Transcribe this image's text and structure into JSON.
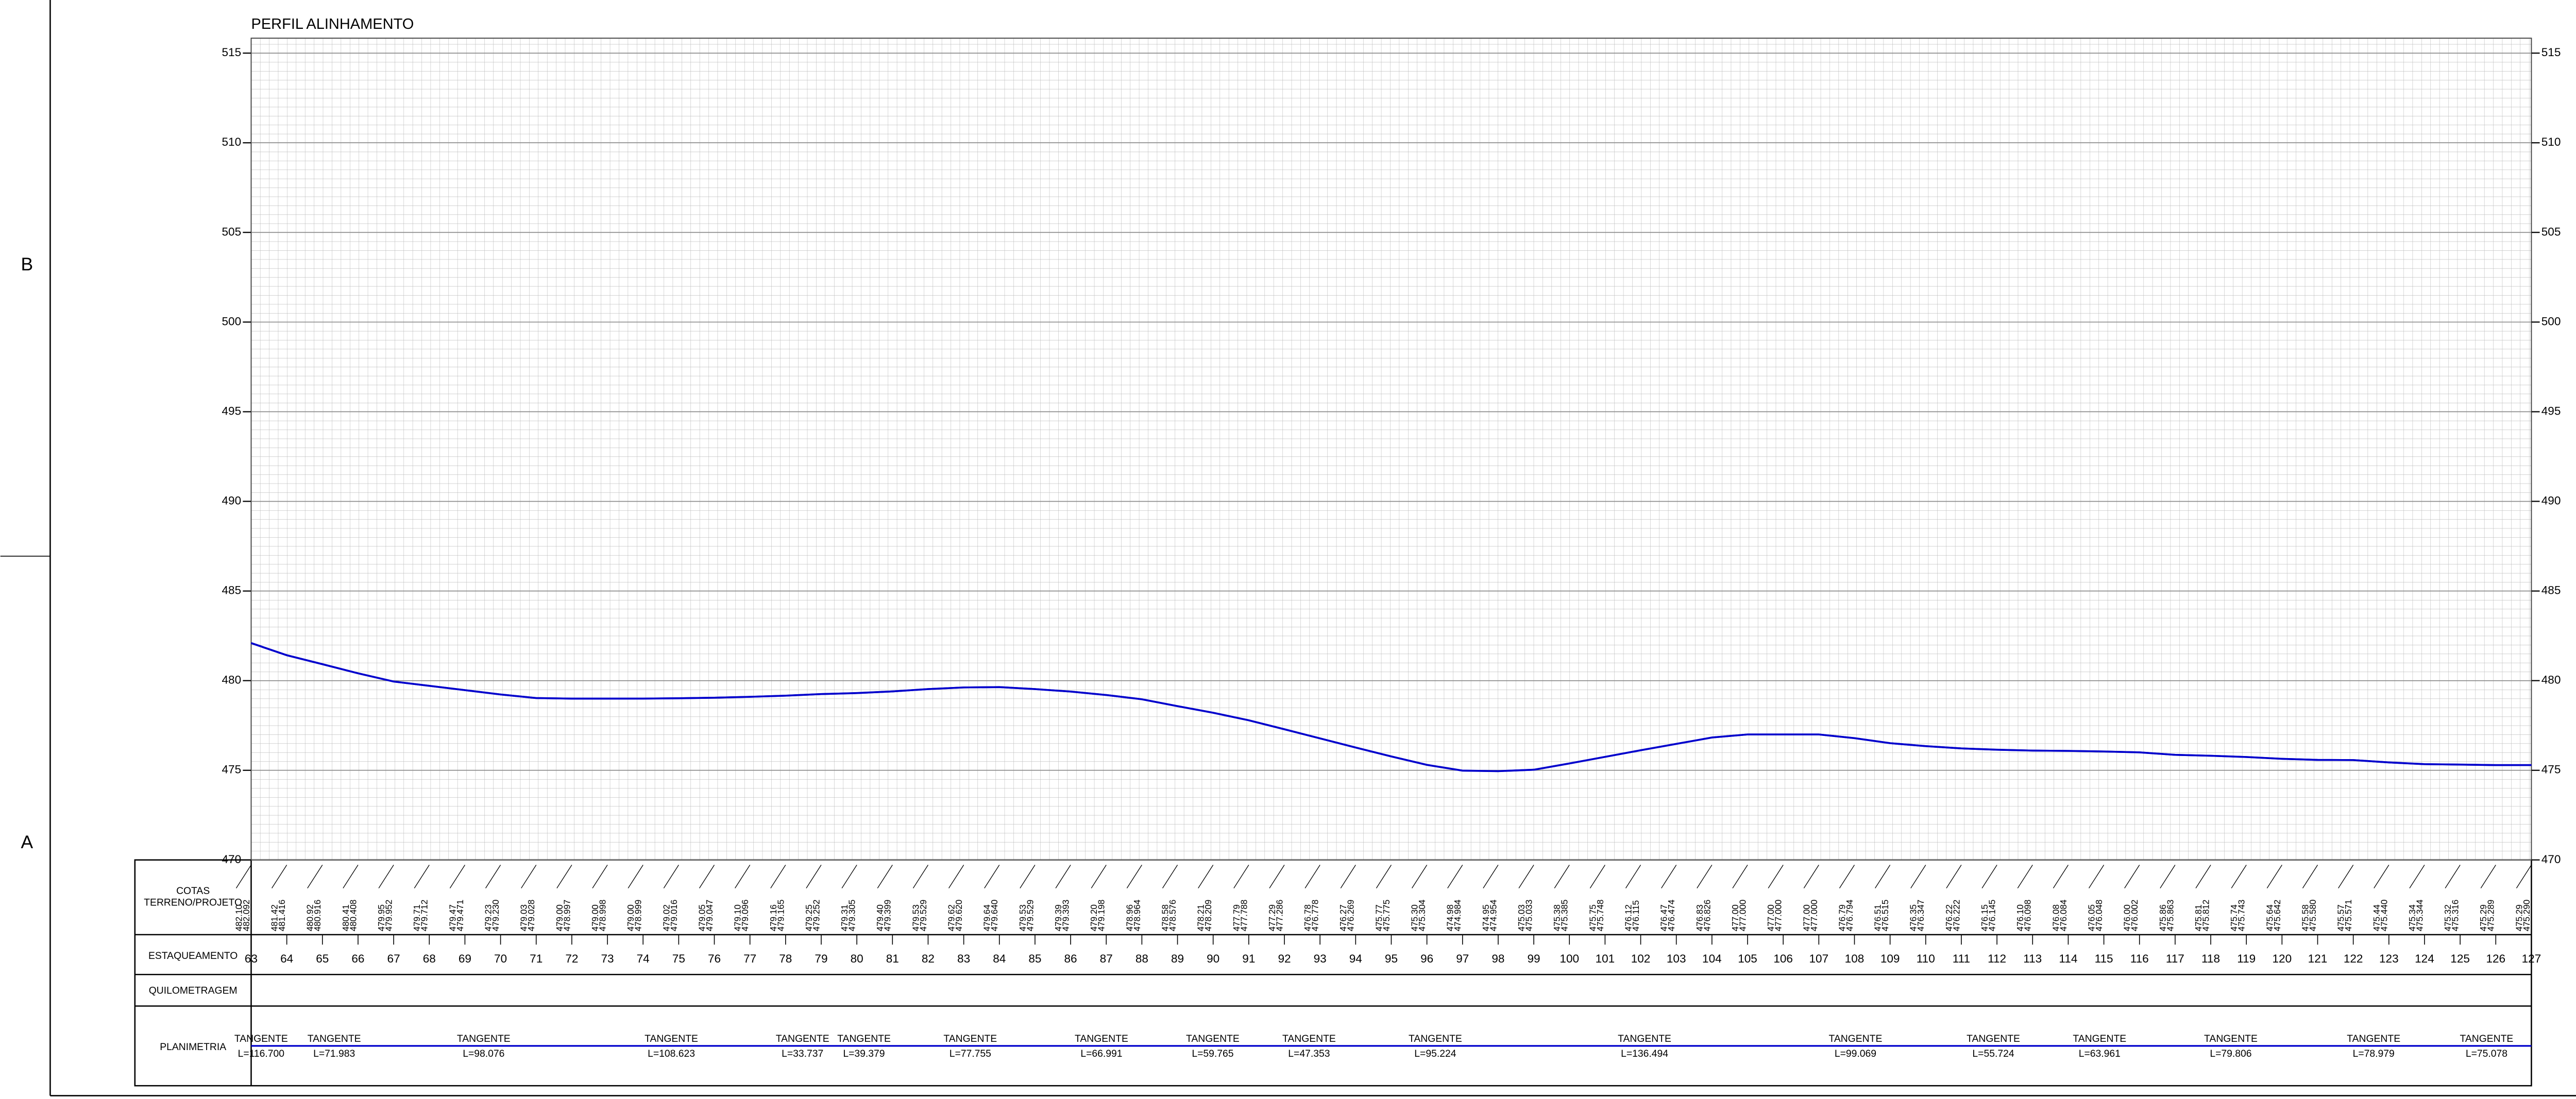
{
  "chart_data": {
    "type": "line",
    "title": "PERFIL ALINHAMENTO",
    "x": [
      63,
      64,
      65,
      66,
      67,
      68,
      69,
      70,
      71,
      72,
      73,
      74,
      75,
      76,
      77,
      78,
      79,
      80,
      81,
      82,
      83,
      84,
      85,
      86,
      87,
      88,
      89,
      90,
      91,
      92,
      93,
      94,
      95,
      96,
      97,
      98,
      99,
      100,
      101,
      102,
      103,
      104,
      105,
      106,
      107,
      108,
      109,
      110,
      111,
      112,
      113,
      114,
      115,
      116,
      117,
      118,
      119,
      120,
      121,
      122,
      123,
      124,
      125,
      126,
      127
    ],
    "xlim": [
      63,
      127
    ],
    "ylim": [
      470,
      515
    ],
    "yticks": [
      470,
      475,
      480,
      485,
      490,
      495,
      500,
      505,
      510,
      515
    ],
    "grid": true,
    "series": [
      {
        "color": "#0000cc",
        "values": [
          482.1,
          481.42,
          480.92,
          480.41,
          479.95,
          479.71,
          479.47,
          479.23,
          479.03,
          479.0,
          479.0,
          479.0,
          479.02,
          479.05,
          479.1,
          479.16,
          479.25,
          479.31,
          479.4,
          479.53,
          479.62,
          479.64,
          479.53,
          479.39,
          479.2,
          478.96,
          478.58,
          478.21,
          477.79,
          477.29,
          476.78,
          476.27,
          475.77,
          475.3,
          474.98,
          474.95,
          475.03,
          475.38,
          475.75,
          476.12,
          476.47,
          476.83,
          477.0,
          477.0,
          477.0,
          476.79,
          476.51,
          476.35,
          476.22,
          476.15,
          476.1,
          476.08,
          476.05,
          476.0,
          475.86,
          475.81,
          475.74,
          475.64,
          475.58,
          475.57,
          475.44,
          475.34,
          475.32,
          475.29,
          475.29
        ],
        "value_labels": [
          "482.10",
          "481.42",
          "480.92",
          "480.41",
          "479.95",
          "479.71",
          "479.47",
          "479.23",
          "479.03",
          "479.00",
          "479.00",
          "479.00",
          "479.02",
          "479.05",
          "479.10",
          "479.16",
          "479.25",
          "479.31",
          "479.40",
          "479.53",
          "479.62",
          "479.64",
          "479.53",
          "479.39",
          "479.20",
          "478.96",
          "478.58",
          "478.21",
          "477.79",
          "477.29",
          "476.78",
          "476.27",
          "475.77",
          "475.30",
          "474.98",
          "474.95",
          "475.03",
          "475.38",
          "475.75",
          "476.12",
          "476.47",
          "476.83",
          "477.00",
          "477.00",
          "477.00",
          "476.79",
          "476.51",
          "476.35",
          "476.22",
          "476.15",
          "476.10",
          "476.08",
          "476.05",
          "476.00",
          "475.86",
          "475.81",
          "475.74",
          "475.64",
          "475.58",
          "475.57",
          "475.44",
          "475.34",
          "475.32",
          "475.29",
          "475.29"
        ]
      },
      {
        "color": "#0000cc",
        "values": [
          482.092,
          481.416,
          480.916,
          480.408,
          479.952,
          479.712,
          479.471,
          479.23,
          479.028,
          478.997,
          478.998,
          478.999,
          479.016,
          479.047,
          479.096,
          479.165,
          479.252,
          479.305,
          479.399,
          479.529,
          479.62,
          479.64,
          479.529,
          479.393,
          479.198,
          478.964,
          478.576,
          478.209,
          477.788,
          477.286,
          476.778,
          476.269,
          475.775,
          475.304,
          474.984,
          474.954,
          475.033,
          475.385,
          475.748,
          476.115,
          476.474,
          476.826,
          477.0,
          477.0,
          477.0,
          476.794,
          476.515,
          476.347,
          476.222,
          476.145,
          476.098,
          476.084,
          476.048,
          476.002,
          475.863,
          475.812,
          475.743,
          475.642,
          475.58,
          475.571,
          475.44,
          475.344,
          475.316,
          475.289,
          475.29
        ],
        "value_labels": [
          "482.092",
          "481.416",
          "480.916",
          "480.408",
          "479.952",
          "479.712",
          "479.471",
          "479.230",
          "479.028",
          "478.997",
          "478.998",
          "478.999",
          "479.016",
          "479.047",
          "479.096",
          "479.165",
          "479.252",
          "479.305",
          "479.399",
          "479.529",
          "479.620",
          "479.640",
          "479.529",
          "479.393",
          "479.198",
          "478.964",
          "478.576",
          "478.209",
          "477.788",
          "477.286",
          "476.778",
          "476.269",
          "475.775",
          "475.304",
          "474.984",
          "474.954",
          "475.033",
          "475.385",
          "475.748",
          "476.115",
          "476.474",
          "476.826",
          "477.000",
          "477.000",
          "477.000",
          "476.794",
          "476.515",
          "476.347",
          "476.222",
          "476.145",
          "476.098",
          "476.084",
          "476.048",
          "476.002",
          "475.863",
          "475.812",
          "475.743",
          "475.642",
          "475.580",
          "475.571",
          "475.440",
          "475.344",
          "475.316",
          "475.289",
          "475.290"
        ]
      }
    ],
    "rows": {
      "cotas": [
        "COTAS",
        "TERRENO/PROJETO"
      ],
      "estaqueamento": "ESTAQUEAMENTO",
      "quilometragem": "QUILOMETRAGEM",
      "planimetria": "PLANIMETRIA"
    },
    "planimetria": [
      {
        "name": "TANGENTE",
        "length": 116.7,
        "length_label": "L=116.700"
      },
      {
        "name": "TANGENTE",
        "length": 71.983,
        "length_label": "L=71.983"
      },
      {
        "name": "TANGENTE",
        "length": 98.076,
        "length_label": "L=98.076"
      },
      {
        "name": "TANGENTE",
        "length": 108.623,
        "length_label": "L=108.623"
      },
      {
        "name": "TANGENTE",
        "length": 33.737,
        "length_label": "L=33.737"
      },
      {
        "name": "TANGENTE",
        "length": 39.379,
        "length_label": "L=39.379"
      },
      {
        "name": "TANGENTE",
        "length": 77.755,
        "length_label": "L=77.755"
      },
      {
        "name": "TANGENTE",
        "length": 66.991,
        "length_label": "L=66.991"
      },
      {
        "name": "TANGENTE",
        "length": 59.765,
        "length_label": "L=59.765"
      },
      {
        "name": "TANGENTE",
        "length": 47.353,
        "length_label": "L=47.353"
      },
      {
        "name": "TANGENTE",
        "length": 95.224,
        "length_label": "L=95.224"
      },
      {
        "name": "TANGENTE",
        "length": 136.494,
        "length_label": "L=136.494"
      },
      {
        "name": "TANGENTE",
        "length": 99.069,
        "length_label": "L=99.069"
      },
      {
        "name": "TANGENTE",
        "length": 55.724,
        "length_label": "L=55.724"
      },
      {
        "name": "TANGENTE",
        "length": 63.961,
        "length_label": "L=63.961"
      },
      {
        "name": "TANGENTE",
        "length": 79.806,
        "length_label": "L=79.806"
      },
      {
        "name": "TANGENTE",
        "length": 78.979,
        "length_label": "L=78.979"
      },
      {
        "name": "TANGENTE",
        "length": 75.078,
        "length_label": "L=75.078"
      }
    ]
  },
  "frame": {
    "zones": [
      "B",
      "A"
    ]
  }
}
